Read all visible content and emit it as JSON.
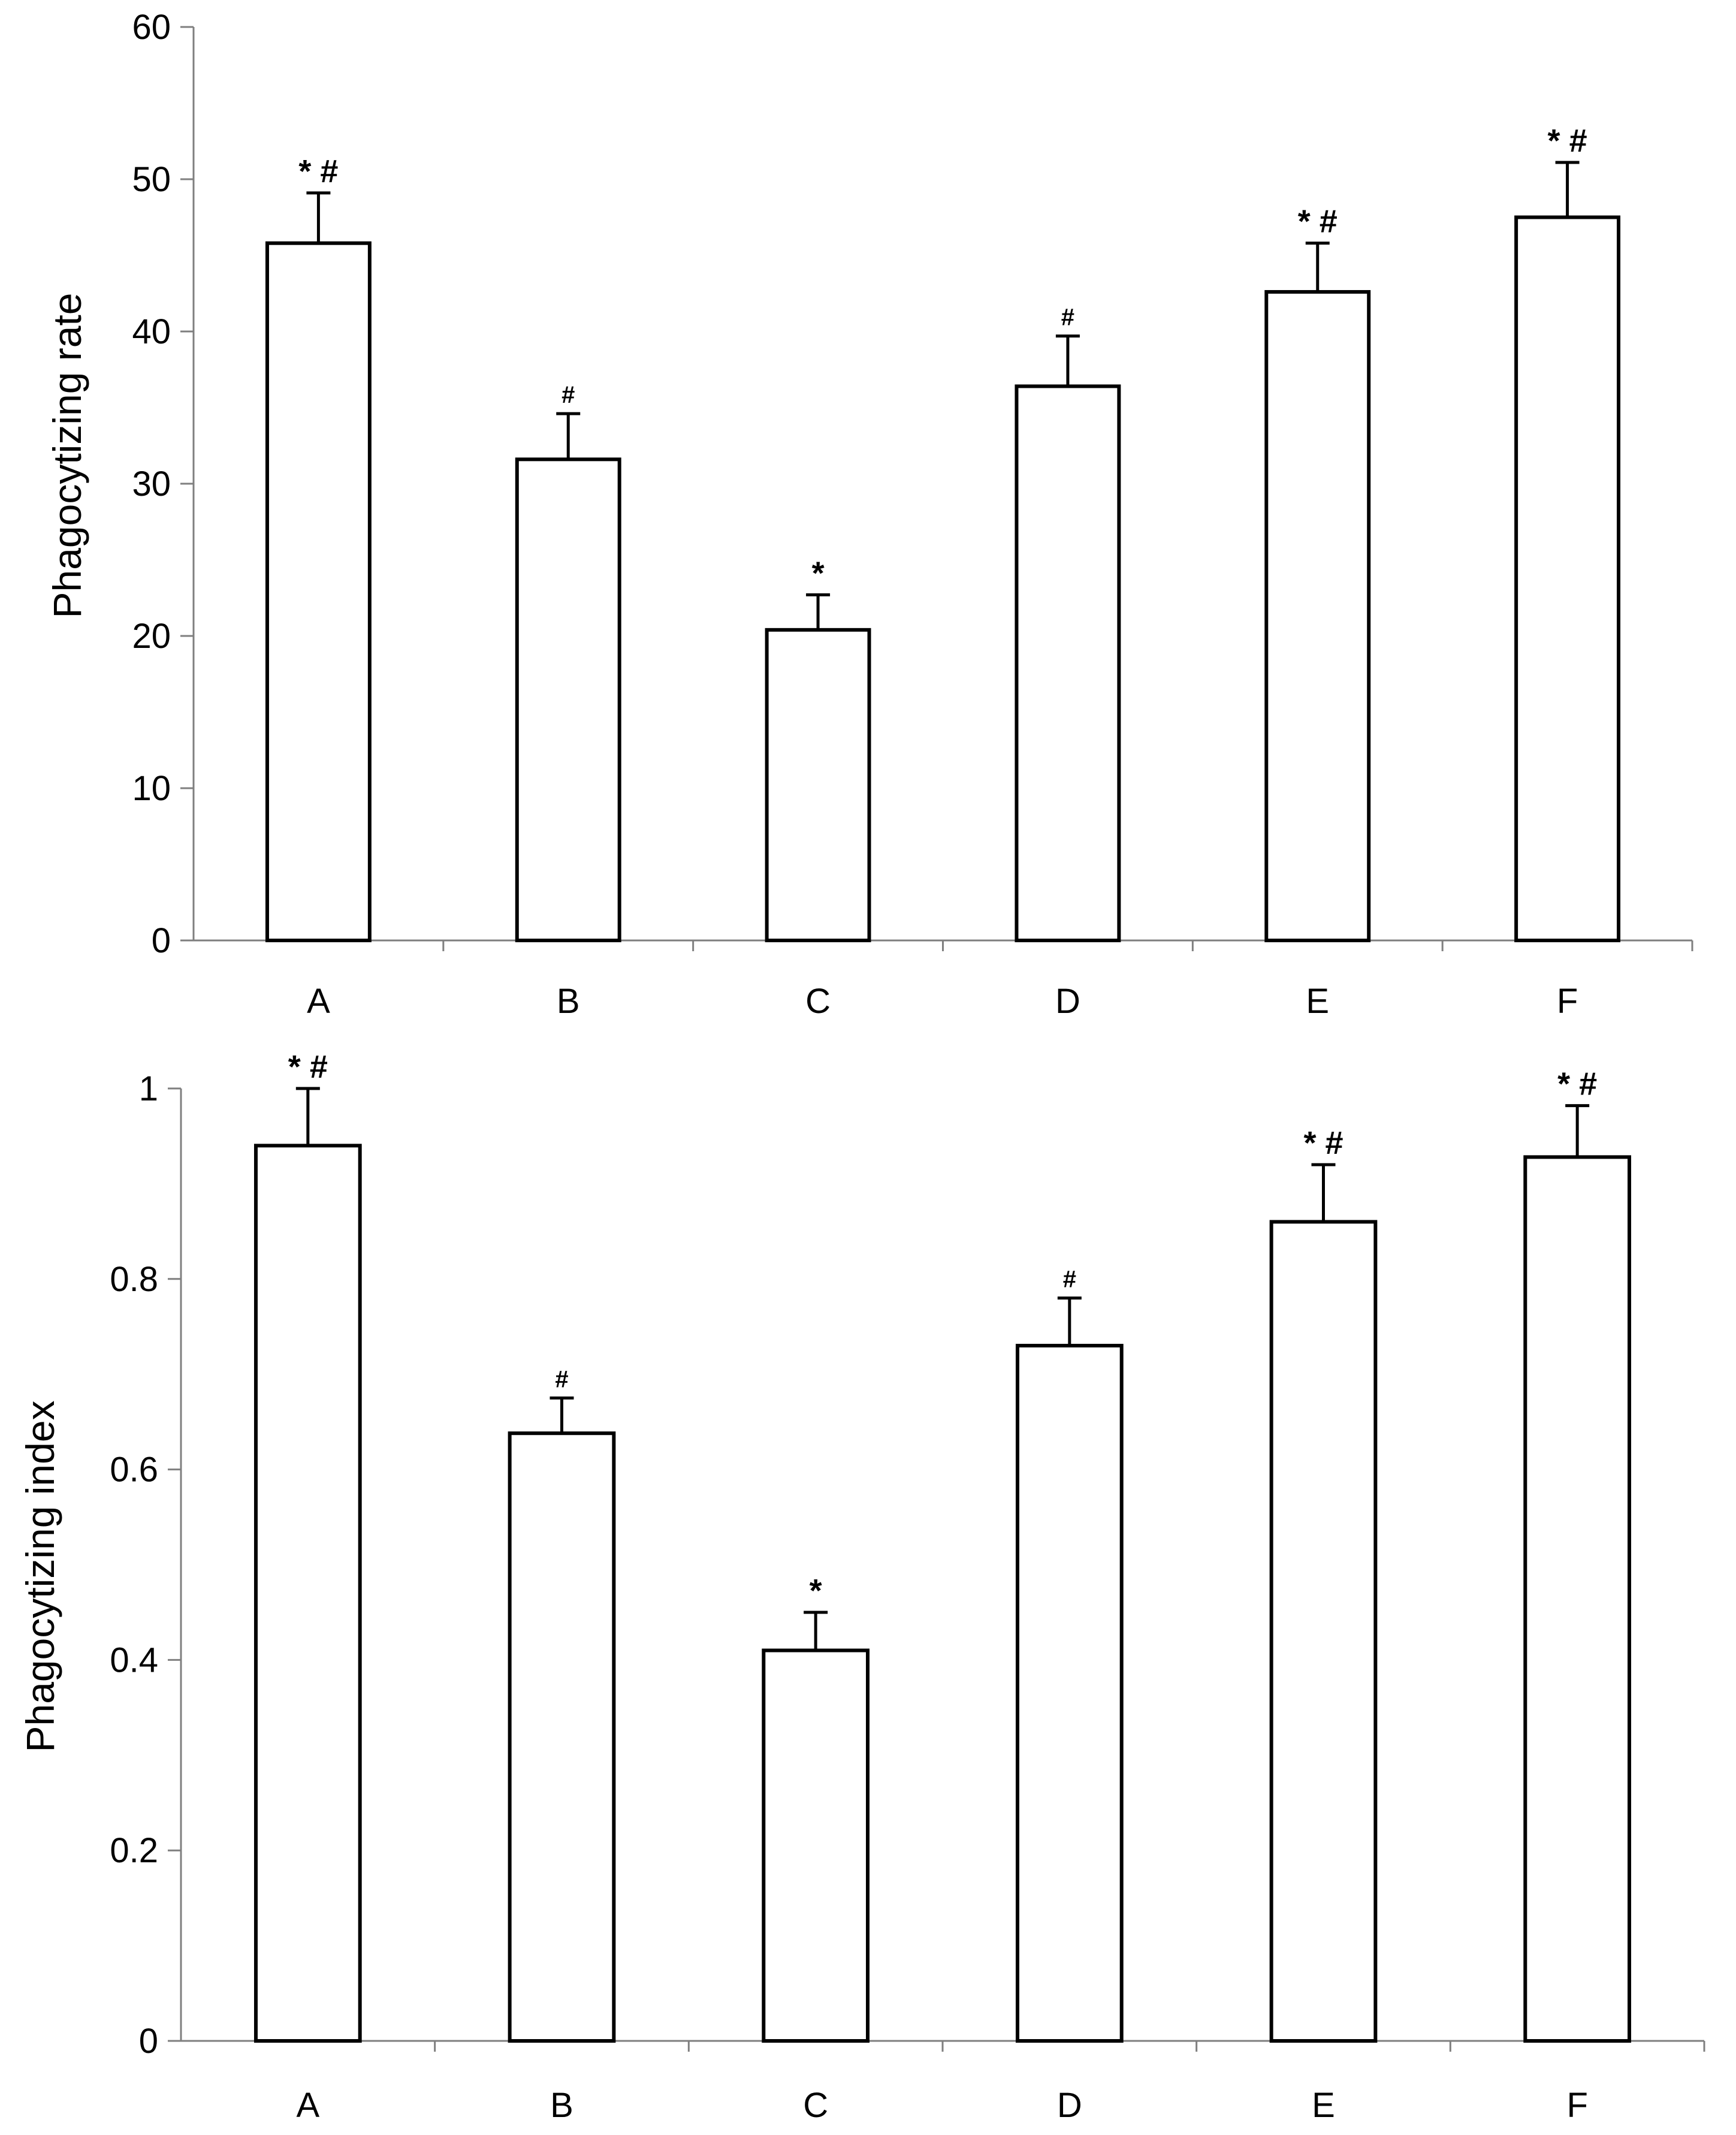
{
  "chart_data": [
    {
      "type": "bar",
      "title": "",
      "xlabel": "",
      "ylabel": "Phagocytizing rate",
      "categories": [
        "A",
        "B",
        "C",
        "D",
        "E",
        "F"
      ],
      "values": [
        45.8,
        31.6,
        20.4,
        36.4,
        42.6,
        47.5
      ],
      "errors": [
        3.3,
        3.0,
        2.3,
        3.3,
        3.2,
        3.6
      ],
      "annotations": [
        "* #",
        "#",
        "*",
        "#",
        "* #",
        "* #"
      ],
      "ylim": [
        0,
        60
      ],
      "yticks": [
        "0",
        "10",
        "20",
        "30",
        "40",
        "50",
        "60"
      ],
      "grid": false
    },
    {
      "type": "bar",
      "title": "",
      "xlabel": "",
      "ylabel": "Phagocytizing index",
      "categories": [
        "A",
        "B",
        "C",
        "D",
        "E",
        "F"
      ],
      "values": [
        0.94,
        0.638,
        0.41,
        0.73,
        0.86,
        0.928
      ],
      "errors": [
        0.06,
        0.037,
        0.04,
        0.05,
        0.06,
        0.054
      ],
      "annotations": [
        "* #",
        "#",
        "*",
        "#",
        "* #",
        "* #"
      ],
      "ylim": [
        0,
        1
      ],
      "yticks": [
        "0",
        "0.2",
        "0.4",
        "0.6",
        "0.8",
        "1"
      ],
      "grid": false
    }
  ]
}
